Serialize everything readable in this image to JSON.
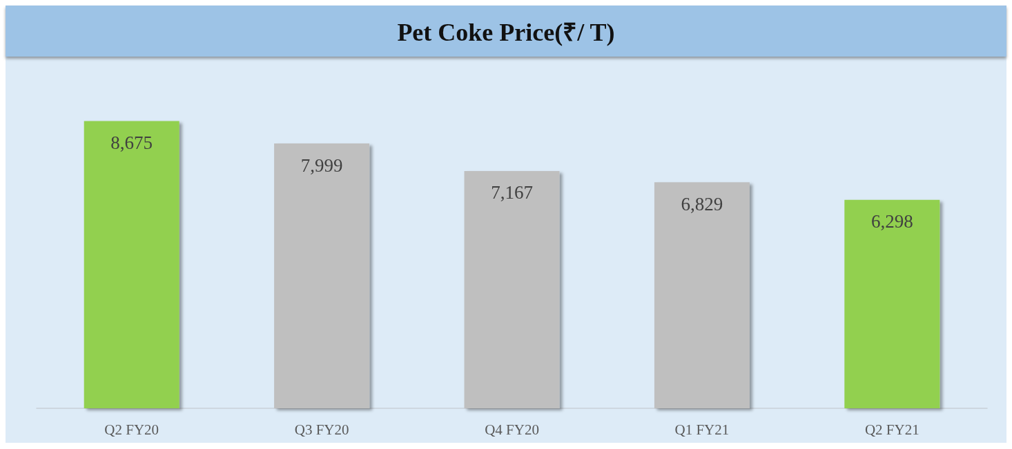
{
  "chart_data": {
    "type": "bar",
    "title": "Pet Coke Price(₹/ T)",
    "categories": [
      "Q2 FY20",
      "Q3 FY20",
      "Q4 FY20",
      "Q1 FY21",
      "Q2 FY21"
    ],
    "values": [
      8675,
      7999,
      7167,
      6829,
      6298
    ],
    "colors": [
      "#92d050",
      "#bfbfbf",
      "#bfbfbf",
      "#bfbfbf",
      "#92d050"
    ],
    "value_labels": [
      "8,675",
      "7,999",
      "7,167",
      "6,829",
      "6,298"
    ]
  }
}
